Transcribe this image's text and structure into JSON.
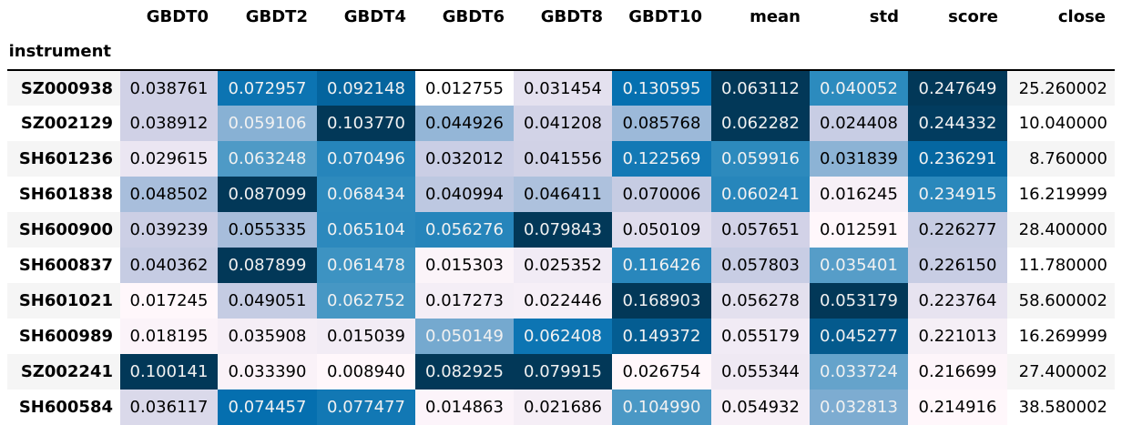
{
  "table": {
    "index_name": "instrument",
    "columns": [
      "GBDT0",
      "GBDT2",
      "GBDT4",
      "GBDT6",
      "GBDT8",
      "GBDT10",
      "mean",
      "std",
      "score",
      "close"
    ],
    "rows": [
      {
        "instrument": "SZ000938",
        "values": [
          "0.038761",
          "0.072957",
          "0.092148",
          "0.012755",
          "0.031454",
          "0.130595",
          "0.063112",
          "0.040052",
          "0.247649",
          "25.260002"
        ],
        "colors": [
          "#d0d1e6",
          "#0c74b2",
          "#04649e",
          "#ffffff",
          "#e4e1ef",
          "#0570b0",
          "#023858",
          "#2c8bbe",
          "#023858",
          ""
        ]
      },
      {
        "instrument": "SZ002129",
        "values": [
          "0.038912",
          "0.059106",
          "0.103770",
          "0.044926",
          "0.041208",
          "0.085768",
          "0.062282",
          "0.024408",
          "0.244332",
          "10.040000"
        ],
        "colors": [
          "#d0d1e6",
          "#88b1d4",
          "#023858",
          "#94b6d7",
          "#d2d3e7",
          "#9cb9d9",
          "#023858",
          "#c8cde4",
          "#023c5f",
          ""
        ]
      },
      {
        "instrument": "SH601236",
        "values": [
          "0.029615",
          "0.063248",
          "0.070496",
          "0.032012",
          "0.041556",
          "0.122569",
          "0.059916",
          "0.031839",
          "0.236291",
          "8.760000"
        ],
        "colors": [
          "#ebe6f2",
          "#4e9ac6",
          "#2685bb",
          "#cacee5",
          "#d1d2e6",
          "#1379b5",
          "#2d8abd",
          "#8cb3d5",
          "#0567a1",
          ""
        ]
      },
      {
        "instrument": "SH601838",
        "values": [
          "0.048502",
          "0.087099",
          "0.068434",
          "0.040994",
          "0.046411",
          "0.070006",
          "0.060241",
          "0.016245",
          "0.234915",
          "16.219999"
        ],
        "colors": [
          "#a8bedc",
          "#023858",
          "#2d8abd",
          "#bdc8e1",
          "#adc1dd",
          "#c6cce3",
          "#2786bb",
          "#f7f0f7",
          "#2a88bc",
          ""
        ]
      },
      {
        "instrument": "SH600900",
        "values": [
          "0.039239",
          "0.055335",
          "0.065104",
          "0.056276",
          "0.079843",
          "0.050109",
          "0.057651",
          "0.012591",
          "0.226277",
          "28.400000"
        ],
        "colors": [
          "#cccfe5",
          "#a7bddb",
          "#2c89bd",
          "#2685bb",
          "#023858",
          "#e0dded",
          "#d2d2e7",
          "#fff7fb",
          "#c6cce3",
          ""
        ]
      },
      {
        "instrument": "SH600837",
        "values": [
          "0.040362",
          "0.087899",
          "0.061478",
          "0.015303",
          "0.025352",
          "0.116426",
          "0.057803",
          "0.035401",
          "0.226150",
          "11.780000"
        ],
        "colors": [
          "#c6cce3",
          "#023858",
          "#3d93c2",
          "#fbf4f9",
          "#f1ebf5",
          "#2987bc",
          "#c8cde4",
          "#569dc8",
          "#c8cde4",
          ""
        ]
      },
      {
        "instrument": "SH601021",
        "values": [
          "0.017245",
          "0.049051",
          "0.062752",
          "0.017273",
          "0.022446",
          "0.168903",
          "0.056278",
          "0.053179",
          "0.223764",
          "58.600002"
        ],
        "colors": [
          "#fff7fb",
          "#c5cce3",
          "#4697c4",
          "#f4eef6",
          "#f6eff7",
          "#023858",
          "#e3e0ee",
          "#023858",
          "#e7e3f0",
          ""
        ]
      },
      {
        "instrument": "SH600989",
        "values": [
          "0.018195",
          "0.035908",
          "0.015039",
          "0.050149",
          "0.062408",
          "0.149372",
          "0.055179",
          "0.045277",
          "0.221013",
          "16.269999"
        ],
        "colors": [
          "#fbf3f9",
          "#f5eef6",
          "#f2ecf5",
          "#75a9cf",
          "#0d75b3",
          "#045d92",
          "#f1ebf5",
          "#045a8d",
          "#f5eff6",
          ""
        ]
      },
      {
        "instrument": "SZ002241",
        "values": [
          "0.100141",
          "0.033390",
          "0.008940",
          "0.082925",
          "0.079915",
          "0.026754",
          "0.055344",
          "0.033724",
          "0.216699",
          "27.400002"
        ],
        "colors": [
          "#023858",
          "#faf2f8",
          "#fff7fb",
          "#023858",
          "#023858",
          "#fff7fb",
          "#efe9f3",
          "#65a3cb",
          "#fdf5fa",
          ""
        ]
      },
      {
        "instrument": "SH600584",
        "values": [
          "0.036117",
          "0.074457",
          "0.077477",
          "0.014863",
          "0.021686",
          "0.104990",
          "0.054932",
          "0.032813",
          "0.214916",
          "38.580002"
        ],
        "colors": [
          "#dad9ea",
          "#056faf",
          "#1278b4",
          "#fcf4fa",
          "#f5eef6",
          "#4a98c5",
          "#f7f0f7",
          "#7dacd1",
          "#fff7fb",
          ""
        ]
      }
    ]
  }
}
